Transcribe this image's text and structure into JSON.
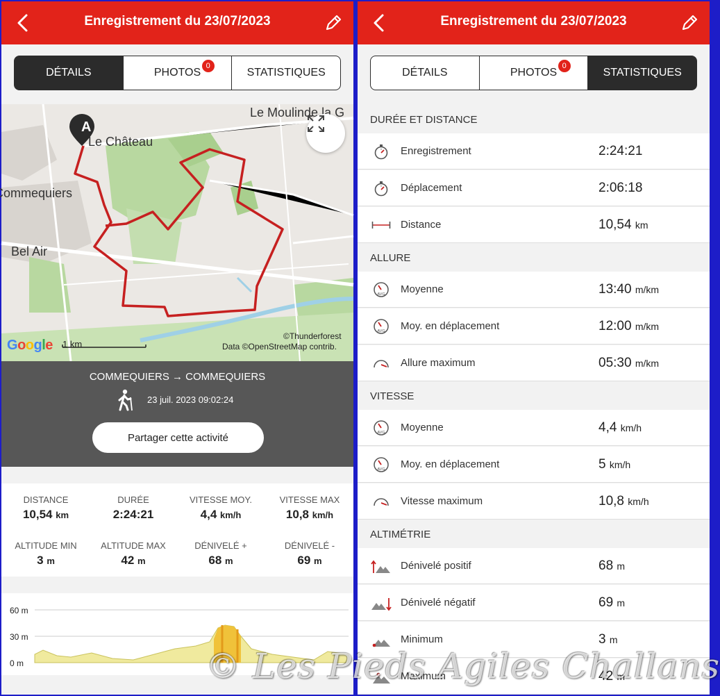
{
  "header": {
    "title": "Enregistrement du 23/07/2023"
  },
  "tabs": [
    {
      "label": "DÉTAILS"
    },
    {
      "label": "PHOTOS",
      "badge": "0"
    },
    {
      "label": "STATISTIQUES"
    }
  ],
  "map": {
    "labels": [
      "Le Moulinde la G",
      "Le Château",
      "Commequiers",
      "Bel Air"
    ],
    "marker": "A",
    "attribution_tf": "©Thunderforest",
    "attribution_osm": "Data ©OpenStreetMap contrib.",
    "scale": "1 km",
    "google": "Google"
  },
  "activity": {
    "route": "COMMEQUIERS → COMMEQUIERS",
    "date": "23 juil. 2023 09:02:24",
    "share_label": "Partager cette activité"
  },
  "summary": [
    {
      "label": "DISTANCE",
      "value": "10,54",
      "unit": "km"
    },
    {
      "label": "DURÉE",
      "value": "2:24:21",
      "unit": ""
    },
    {
      "label": "VITESSE MOY.",
      "value": "4,4",
      "unit": "km/h"
    },
    {
      "label": "VITESSE MAX",
      "value": "10,8",
      "unit": "km/h"
    },
    {
      "label": "ALTITUDE MIN",
      "value": "3",
      "unit": "m"
    },
    {
      "label": "ALTITUDE MAX",
      "value": "42",
      "unit": "m"
    },
    {
      "label": "DÉNIVELÉ +",
      "value": "68",
      "unit": "m"
    },
    {
      "label": "DÉNIVELÉ -",
      "value": "69",
      "unit": "m"
    }
  ],
  "profile": {
    "y_labels": [
      "60 m",
      "30 m",
      "0 m"
    ]
  },
  "statistics": {
    "sections": [
      {
        "title": "DURÉE ET DISTANCE",
        "rows": [
          {
            "label": "Enregistrement",
            "value": "2:24:21",
            "unit": "",
            "icon": "stopwatch-icon"
          },
          {
            "label": "Déplacement",
            "value": "2:06:18",
            "unit": "",
            "icon": "stopwatch-icon"
          },
          {
            "label": "Distance",
            "value": "10,54",
            "unit": "km",
            "icon": "distance-icon"
          }
        ]
      },
      {
        "title": "ALLURE",
        "rows": [
          {
            "label": "Moyenne",
            "value": "13:40",
            "unit": "m/km",
            "icon": "speedometer-avg-icon"
          },
          {
            "label": "Moy. en déplacement",
            "value": "12:00",
            "unit": "m/km",
            "icon": "speedometer-avg-icon"
          },
          {
            "label": "Allure maximum",
            "value": "05:30",
            "unit": "m/km",
            "icon": "speedometer-max-icon"
          }
        ]
      },
      {
        "title": "VITESSE",
        "rows": [
          {
            "label": "Moyenne",
            "value": "4,4",
            "unit": "km/h",
            "icon": "speedometer-avg-icon"
          },
          {
            "label": "Moy. en déplacement",
            "value": "5",
            "unit": "km/h",
            "icon": "speedometer-avg-icon"
          },
          {
            "label": "Vitesse maximum",
            "value": "10,8",
            "unit": "km/h",
            "icon": "speedometer-max-icon"
          }
        ]
      },
      {
        "title": "ALTIMÉTRIE",
        "rows": [
          {
            "label": "Dénivelé positif",
            "value": "68",
            "unit": "m",
            "icon": "elevation-up-icon"
          },
          {
            "label": "Dénivelé négatif",
            "value": "69",
            "unit": "m",
            "icon": "elevation-down-icon"
          },
          {
            "label": "Minimum",
            "value": "3",
            "unit": "m",
            "icon": "elevation-min-icon"
          },
          {
            "label": "Maximum",
            "value": "42",
            "unit": "m",
            "icon": "elevation-max-icon"
          }
        ]
      }
    ]
  },
  "watermark": "© Les Pieds Agiles Challans",
  "colors": {
    "brand": "#e2231a",
    "dark": "#2b2b2b",
    "route": "#c62020",
    "frame": "#1d1dc8"
  }
}
